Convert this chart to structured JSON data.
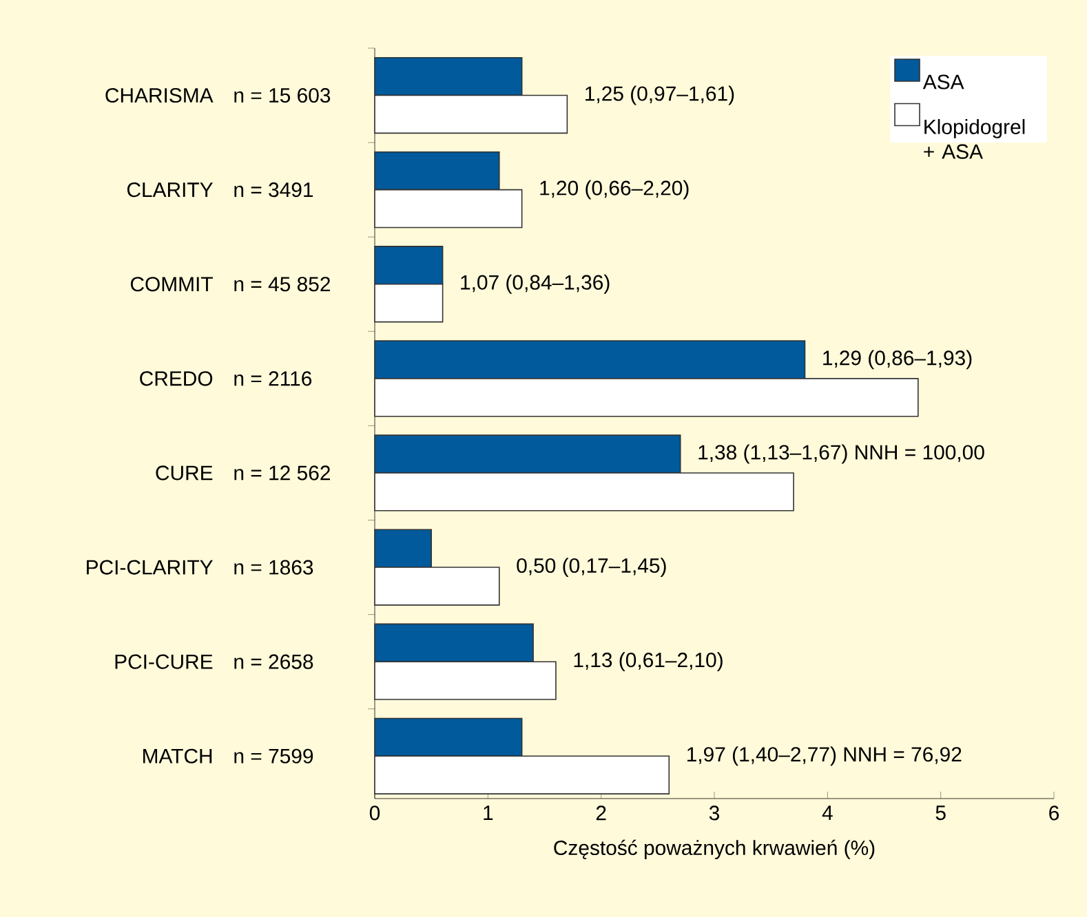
{
  "chart_data": {
    "type": "bar",
    "orientation": "horizontal",
    "xlabel": "Częstość poważnych krwawień (%)",
    "categories": [
      "CHARISMA",
      "CLARITY",
      "COMMIT",
      "CREDO",
      "CURE",
      "PCI-CLARITY",
      "PCI-CURE",
      "MATCH"
    ],
    "series": [
      {
        "name": "ASA",
        "color": "#005a9c",
        "values": [
          1.3,
          1.1,
          0.6,
          3.8,
          2.7,
          0.5,
          1.4,
          1.3
        ]
      },
      {
        "name": "Klopidogrel + ASA",
        "color": "#ffffff",
        "values": [
          1.7,
          1.3,
          0.6,
          4.8,
          3.7,
          1.1,
          1.6,
          2.6
        ]
      }
    ],
    "xlim": [
      0,
      6
    ],
    "xticks": [
      0,
      1,
      2,
      3,
      4,
      5,
      6
    ],
    "grid": false,
    "legend": "top right",
    "annotations": [
      "n = 15 603",
      "n = 3491",
      "n = 45 852",
      "n = 2116",
      "n = 12 562",
      "n = 1863",
      "n = 2658",
      "n = 7599",
      "1,25 (0,97–1,61)",
      "1,20 (0,66–2,20)",
      "1,07 (0,84–1,36)",
      "1,29 (0,86–1,93)",
      "1,38 (1,13–1,67) NNH = 100,00",
      "0,50 (0,17–1,45)",
      "1,13 (0,61–2,10)",
      "1,97 (1,40–2,77) NNH = 76,92"
    ]
  }
}
